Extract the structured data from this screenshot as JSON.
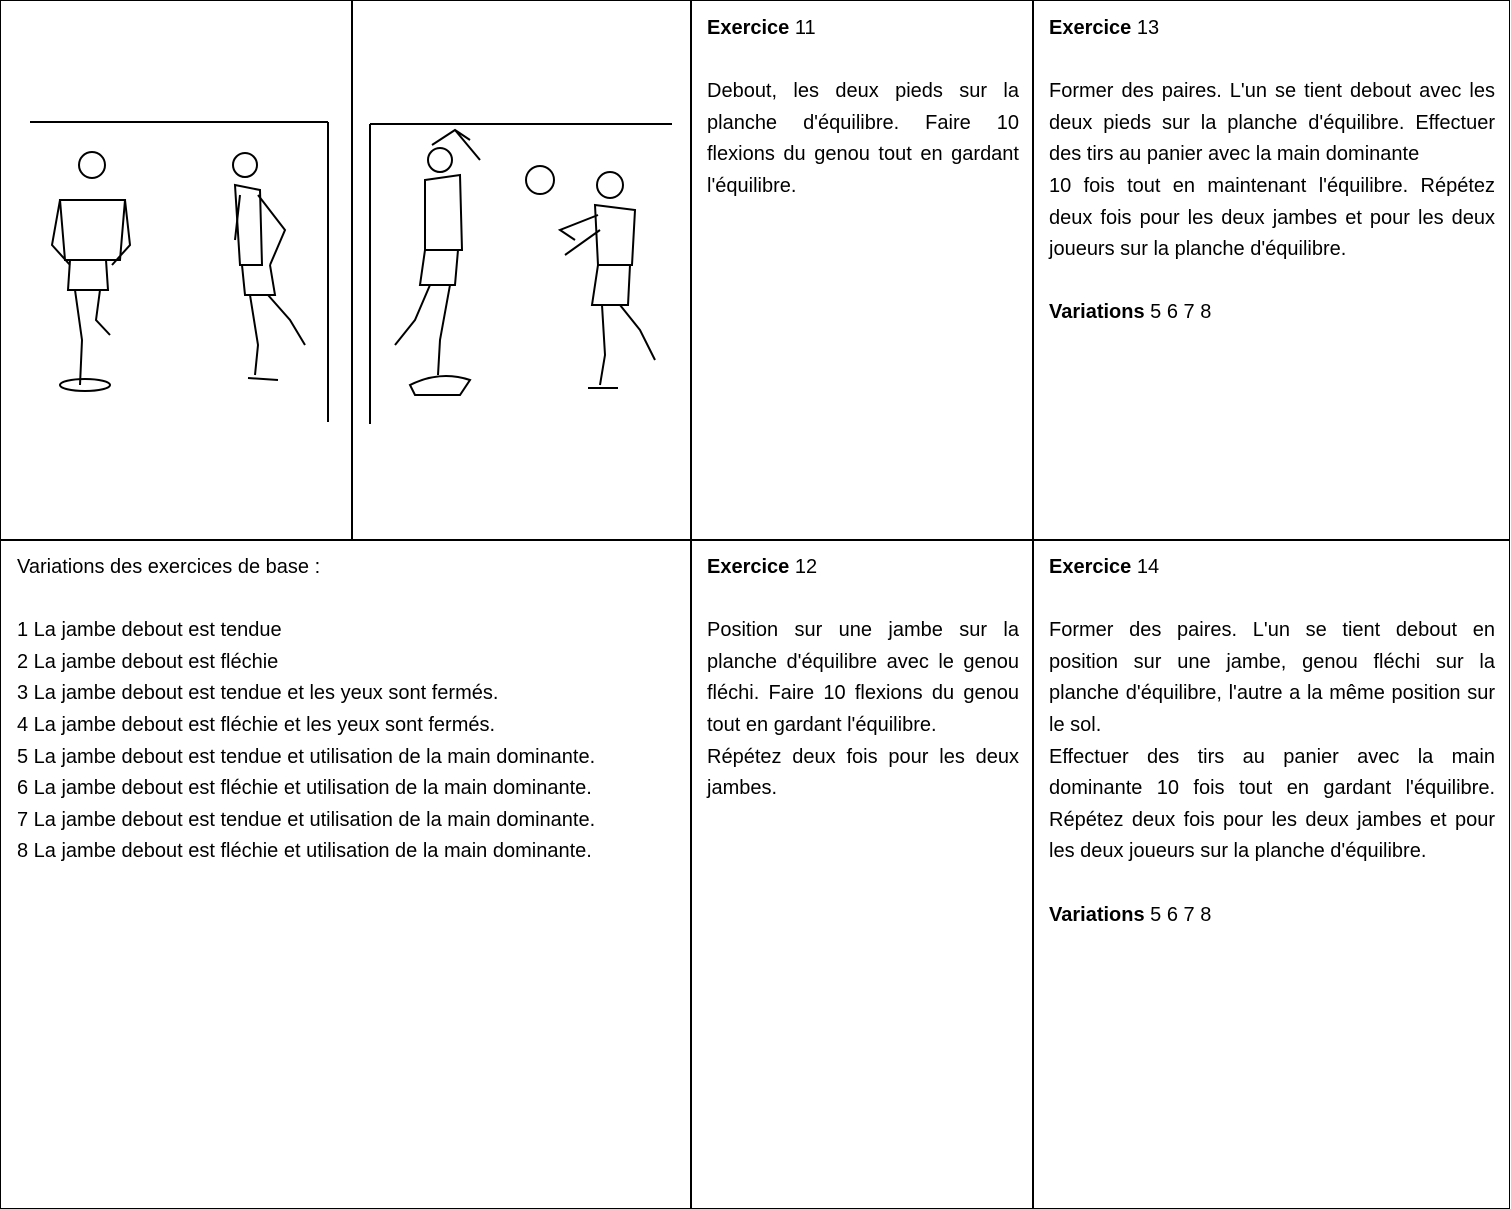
{
  "variations_cell": {
    "title": "Variations des exercices de base :",
    "items": [
      "1 La jambe debout est tendue",
      "2 La jambe debout est fléchie",
      "3 La jambe debout est tendue et les yeux sont fermés.",
      "4 La jambe debout est fléchie et les yeux sont fermés.",
      "5 La jambe debout est tendue et utilisation de la main dominante.",
      "6 La jambe debout est fléchie et utilisation de la main dominante.",
      "7 La jambe debout est tendue et utilisation de la main dominante.",
      "8 La jambe debout est fléchie et utilisation de la main dominante."
    ]
  },
  "exercises": [
    {
      "label": "Exercice",
      "number": "11",
      "paragraphs": [
        "Debout, les deux pieds sur la planche d'équilibre. Faire 10 flexions du genou tout en gardant l'équilibre."
      ]
    },
    {
      "label": "Exercice",
      "number": "13",
      "paragraphs": [
        "Former des paires. L'un se tient debout avec les deux pieds sur la planche d'équilibre. Effectuer des tirs au panier avec la main dominante",
        "10 fois tout en maintenant l'équilibre. Répétez deux fois pour les deux jambes et pour les deux joueurs sur la planche d'équilibre."
      ],
      "variations": {
        "label": "Variations",
        "values": "5 6 7 8"
      }
    },
    {
      "label": "Exercice",
      "number": "12",
      "paragraphs": [
        "Position sur une jambe sur la planche d'équilibre avec le genou fléchi. Faire 10 flexions du genou tout en gardant l'équilibre.",
        "Répétez deux fois pour les deux jambes."
      ]
    },
    {
      "label": "Exercice",
      "number": "14",
      "paragraphs": [
        "Former des paires. L'un se tient debout en position sur une jambe, genou fléchi sur la planche d'équilibre, l'autre a la même position sur le sol.",
        "Effectuer des tirs au panier avec la main dominante 10 fois tout en gardant l'équilibre. Répétez deux fois pour les deux jambes et pour les deux joueurs sur la planche d'équilibre."
      ],
      "variations": {
        "label": "Variations",
        "values": "5 6 7 8"
      }
    }
  ]
}
